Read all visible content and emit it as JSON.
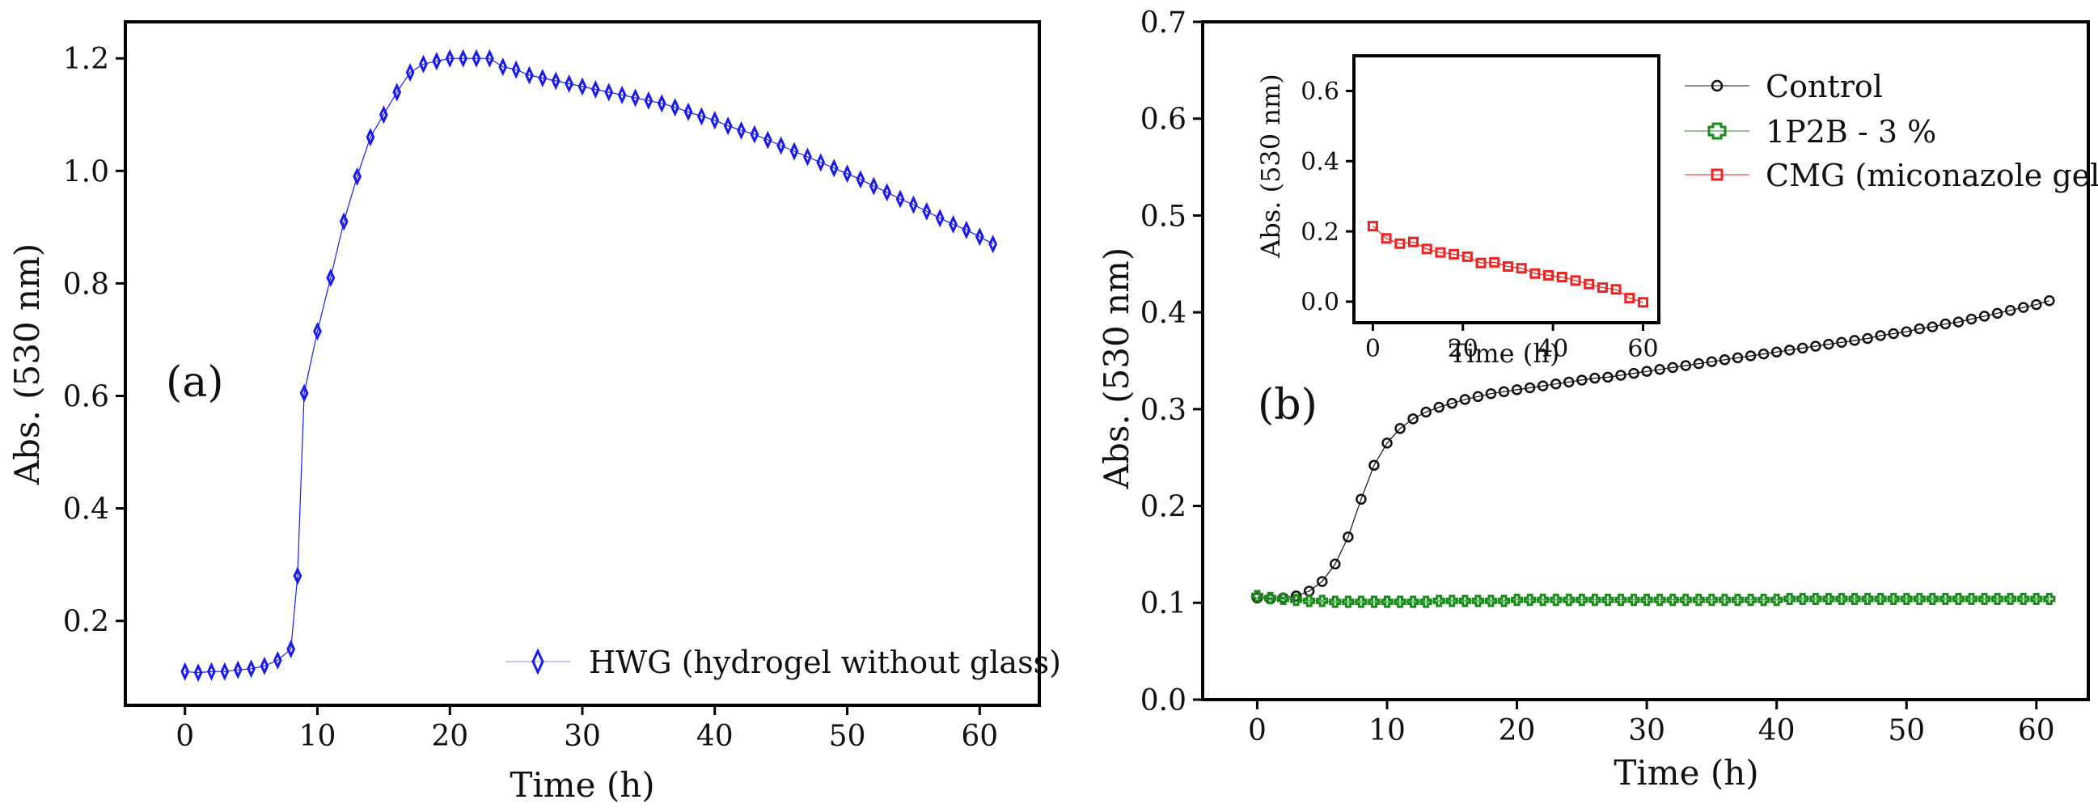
{
  "chart_data": [
    {
      "panel_label": "(a)",
      "type": "line",
      "xlabel": "Time (h)",
      "ylabel": "Abs. (530 nm)",
      "xlim": [
        -4.5,
        64.5
      ],
      "ylim": [
        0.05,
        1.265
      ],
      "xticks": [
        0,
        10,
        20,
        30,
        40,
        50,
        60
      ],
      "yticks": [
        0.2,
        0.4,
        0.6,
        0.8,
        1.0,
        1.2
      ],
      "ytick_labels": [
        "0.2",
        "0.4",
        "0.6",
        "0.8",
        "1.0",
        "1.2"
      ],
      "legend_position": "bottom-right",
      "series": [
        {
          "name": "HWG (hydrogel without glass)",
          "color": "#1a1aee",
          "marker": "diamond",
          "x": [
            0,
            1,
            2,
            3,
            4,
            5,
            6,
            7,
            8,
            8.5,
            9,
            10,
            11,
            12,
            13,
            14,
            15,
            16,
            17,
            18,
            19,
            20,
            21,
            22,
            23,
            24,
            25,
            26,
            27,
            28,
            29,
            30,
            31,
            32,
            33,
            34,
            35,
            36,
            37,
            38,
            39,
            40,
            41,
            42,
            43,
            44,
            45,
            46,
            47,
            48,
            49,
            50,
            51,
            52,
            53,
            54,
            55,
            56,
            57,
            58,
            59,
            60,
            61
          ],
          "y": [
            0.11,
            0.108,
            0.11,
            0.11,
            0.113,
            0.115,
            0.12,
            0.13,
            0.15,
            0.28,
            0.605,
            0.715,
            0.81,
            0.91,
            0.99,
            1.06,
            1.1,
            1.14,
            1.175,
            1.19,
            1.195,
            1.2,
            1.2,
            1.2,
            1.2,
            1.185,
            1.18,
            1.17,
            1.165,
            1.16,
            1.155,
            1.15,
            1.145,
            1.14,
            1.135,
            1.13,
            1.125,
            1.12,
            1.113,
            1.105,
            1.097,
            1.09,
            1.08,
            1.072,
            1.065,
            1.055,
            1.045,
            1.035,
            1.025,
            1.015,
            1.005,
            0.995,
            0.985,
            0.973,
            0.962,
            0.95,
            0.94,
            0.928,
            0.916,
            0.905,
            0.895,
            0.883,
            0.87
          ]
        }
      ]
    },
    {
      "panel_label": "(b)",
      "type": "line",
      "xlabel": "Time (h)",
      "ylabel": "Abs. (530 nm)",
      "xlim": [
        -4.2,
        64
      ],
      "ylim": [
        0.0,
        0.7
      ],
      "xticks": [
        0,
        10,
        20,
        30,
        40,
        50,
        60
      ],
      "yticks": [
        0.0,
        0.1,
        0.2,
        0.3,
        0.4,
        0.5,
        0.6,
        0.7
      ],
      "ytick_labels": [
        "0.0",
        "0.1",
        "0.2",
        "0.3",
        "0.4",
        "0.5",
        "0.6",
        "0.7"
      ],
      "legend_position": "top-right",
      "series": [
        {
          "name": "Control",
          "color": "#111111",
          "marker": "circle",
          "x": [
            0,
            1,
            2,
            3,
            4,
            5,
            6,
            7,
            8,
            9,
            10,
            11,
            12,
            13,
            14,
            15,
            16,
            17,
            18,
            19,
            20,
            21,
            22,
            23,
            24,
            25,
            26,
            27,
            28,
            29,
            30,
            31,
            32,
            33,
            34,
            35,
            36,
            37,
            38,
            39,
            40,
            41,
            42,
            43,
            44,
            45,
            46,
            47,
            48,
            49,
            50,
            51,
            52,
            53,
            54,
            55,
            56,
            57,
            58,
            59,
            60,
            61
          ],
          "y": [
            0.105,
            0.104,
            0.105,
            0.107,
            0.112,
            0.122,
            0.14,
            0.168,
            0.207,
            0.242,
            0.265,
            0.28,
            0.29,
            0.297,
            0.302,
            0.306,
            0.31,
            0.313,
            0.316,
            0.318,
            0.32,
            0.322,
            0.324,
            0.326,
            0.328,
            0.33,
            0.332,
            0.333,
            0.335,
            0.337,
            0.339,
            0.341,
            0.343,
            0.345,
            0.347,
            0.349,
            0.351,
            0.353,
            0.355,
            0.357,
            0.359,
            0.361,
            0.363,
            0.365,
            0.367,
            0.369,
            0.371,
            0.373,
            0.376,
            0.378,
            0.38,
            0.383,
            0.385,
            0.388,
            0.39,
            0.393,
            0.396,
            0.399,
            0.402,
            0.405,
            0.408,
            0.412
          ]
        },
        {
          "name": "1P2B - 3 %",
          "color": "#1a8c1a",
          "marker": "plus",
          "x": [
            0,
            1,
            2,
            3,
            4,
            5,
            6,
            7,
            8,
            9,
            10,
            11,
            12,
            13,
            14,
            15,
            16,
            17,
            18,
            19,
            20,
            21,
            22,
            23,
            24,
            25,
            26,
            27,
            28,
            29,
            30,
            31,
            32,
            33,
            34,
            35,
            36,
            37,
            38,
            39,
            40,
            41,
            42,
            43,
            44,
            45,
            46,
            47,
            48,
            49,
            50,
            51,
            52,
            53,
            54,
            55,
            56,
            57,
            58,
            59,
            60,
            61
          ],
          "y": [
            0.107,
            0.105,
            0.104,
            0.103,
            0.102,
            0.102,
            0.101,
            0.101,
            0.101,
            0.101,
            0.101,
            0.101,
            0.101,
            0.101,
            0.102,
            0.102,
            0.102,
            0.102,
            0.102,
            0.102,
            0.103,
            0.103,
            0.103,
            0.103,
            0.103,
            0.103,
            0.103,
            0.103,
            0.103,
            0.103,
            0.103,
            0.103,
            0.103,
            0.103,
            0.103,
            0.103,
            0.103,
            0.103,
            0.103,
            0.103,
            0.103,
            0.104,
            0.104,
            0.104,
            0.104,
            0.104,
            0.104,
            0.104,
            0.104,
            0.104,
            0.104,
            0.104,
            0.104,
            0.104,
            0.104,
            0.104,
            0.104,
            0.104,
            0.104,
            0.104,
            0.104,
            0.104
          ]
        },
        {
          "name": "CMG (miconazole gel)",
          "color": "#ee2222",
          "marker": "square"
        }
      ]
    },
    {
      "panel_label": "inset",
      "type": "line",
      "xlabel": "Time (h)",
      "ylabel": "Abs. (530 nm)",
      "xlim": [
        -4.2,
        63.5
      ],
      "ylim": [
        -0.06,
        0.7
      ],
      "xticks": [
        0,
        20,
        40,
        60
      ],
      "yticks": [
        0.0,
        0.2,
        0.4,
        0.6
      ],
      "ytick_labels": [
        "0.0",
        "0.2",
        "0.4",
        "0.6"
      ],
      "series": [
        {
          "name": "CMG (miconazole gel)",
          "color": "#ee2222",
          "marker": "square",
          "x": [
            0,
            3,
            6,
            9,
            12,
            15,
            18,
            21,
            24,
            27,
            30,
            33,
            36,
            39,
            42,
            45,
            48,
            51,
            54,
            57,
            60
          ],
          "y": [
            0.215,
            0.18,
            0.165,
            0.17,
            0.15,
            0.14,
            0.135,
            0.128,
            0.11,
            0.112,
            0.1,
            0.095,
            0.08,
            0.075,
            0.07,
            0.06,
            0.05,
            0.04,
            0.035,
            0.01,
            -0.002
          ]
        }
      ]
    }
  ]
}
